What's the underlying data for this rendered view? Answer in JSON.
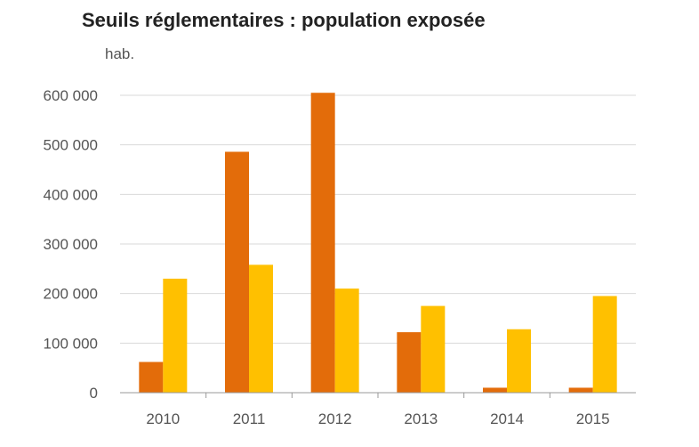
{
  "chart_data": {
    "type": "bar",
    "title": "Seuils réglementaires : population exposée",
    "ylabel": "hab.",
    "xlabel": "",
    "categories": [
      "2010",
      "2011",
      "2012",
      "2013",
      "2014",
      "2015"
    ],
    "y_ticks": [
      "0",
      "100 000",
      "200 000",
      "300 000",
      "400 000",
      "500 000",
      "600 000"
    ],
    "ylim": [
      0,
      600000
    ],
    "grid": true,
    "legend": "none",
    "series": [
      {
        "values": [
          62000,
          486000,
          605000,
          122000,
          10000,
          10000
        ],
        "color": "#E36C0A"
      },
      {
        "values": [
          230000,
          258000,
          210000,
          175000,
          128000,
          195000
        ],
        "color": "#FFC000"
      }
    ]
  }
}
